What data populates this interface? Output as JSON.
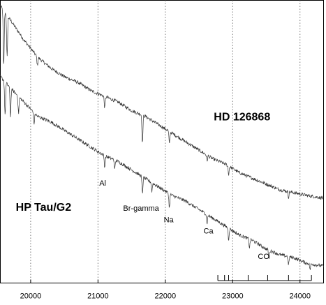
{
  "chart_data": {
    "type": "line",
    "title": "",
    "xlabel": "",
    "ylabel": "",
    "xlim": [
      19550,
      24350
    ],
    "xticks": [
      20000,
      21000,
      22000,
      23000,
      24000
    ],
    "xtick_labels": [
      "20000",
      "21000",
      "22000",
      "23000",
      "24000"
    ],
    "gridlines_x": [
      20000,
      21000,
      22000,
      23000,
      24000
    ],
    "grid": "vertical-dotted",
    "series": [
      {
        "name": "HD 126868",
        "color": "#333333",
        "x": [
          19550,
          19700,
          19900,
          20100,
          20300,
          20500,
          20700,
          20900,
          21100,
          21300,
          21500,
          21700,
          21900,
          22100,
          22300,
          22500,
          22700,
          22900,
          23100,
          23300,
          23500,
          23700,
          23900,
          24100,
          24350
        ],
        "y": [
          0.98,
          0.93,
          0.86,
          0.8,
          0.76,
          0.73,
          0.71,
          0.68,
          0.66,
          0.64,
          0.61,
          0.59,
          0.56,
          0.53,
          0.5,
          0.47,
          0.44,
          0.42,
          0.39,
          0.37,
          0.35,
          0.33,
          0.32,
          0.31,
          0.3
        ],
        "lines": [
          {
            "x": 19600,
            "depth": 0.2
          },
          {
            "x": 19650,
            "depth": 0.15
          },
          {
            "x": 20100,
            "depth": 0.03
          },
          {
            "x": 21100,
            "depth": 0.04
          },
          {
            "x": 21660,
            "depth": 0.1
          },
          {
            "x": 22060,
            "depth": 0.04
          },
          {
            "x": 22620,
            "depth": 0.02
          },
          {
            "x": 22940,
            "depth": 0.03
          },
          {
            "x": 23830,
            "depth": 0.02
          }
        ]
      },
      {
        "name": "HP Tau/G2",
        "color": "#333333",
        "x": [
          19550,
          19700,
          19900,
          20100,
          20300,
          20500,
          20700,
          20900,
          21100,
          21300,
          21500,
          21700,
          21900,
          22100,
          22300,
          22500,
          22700,
          22900,
          23100,
          23300,
          23500,
          23700,
          23900,
          24100,
          24350
        ],
        "y": [
          0.73,
          0.69,
          0.64,
          0.59,
          0.57,
          0.54,
          0.51,
          0.48,
          0.45,
          0.43,
          0.4,
          0.37,
          0.34,
          0.31,
          0.29,
          0.26,
          0.23,
          0.2,
          0.17,
          0.15,
          0.12,
          0.1,
          0.09,
          0.07,
          0.06
        ],
        "lines": [
          {
            "x": 19620,
            "depth": 0.12
          },
          {
            "x": 19700,
            "depth": 0.1
          },
          {
            "x": 19820,
            "depth": 0.06
          },
          {
            "x": 20050,
            "depth": 0.04
          },
          {
            "x": 21100,
            "depth": 0.04
          },
          {
            "x": 21250,
            "depth": 0.03
          },
          {
            "x": 21660,
            "depth": 0.06
          },
          {
            "x": 21800,
            "depth": 0.03
          },
          {
            "x": 22060,
            "depth": 0.05
          },
          {
            "x": 22620,
            "depth": 0.03
          },
          {
            "x": 22940,
            "depth": 0.04
          },
          {
            "x": 23250,
            "depth": 0.03
          },
          {
            "x": 23540,
            "depth": 0.03
          },
          {
            "x": 23830,
            "depth": 0.03
          },
          {
            "x": 24150,
            "depth": 0.02
          }
        ]
      }
    ],
    "series_labels": [
      {
        "text": "HD 126868",
        "x": 22720,
        "y": 0.575
      },
      {
        "text": "HP Tau/G2",
        "x": 19780,
        "y": 0.255
      }
    ],
    "annotations": [
      {
        "text": "Al",
        "x": 21070,
        "y": 0.345
      },
      {
        "text": "Br-gamma",
        "x": 21640,
        "y": 0.255
      },
      {
        "text": "Na",
        "x": 22050,
        "y": 0.215
      },
      {
        "text": "Ca",
        "x": 22640,
        "y": 0.175
      },
      {
        "text": "CO",
        "x": 23460,
        "y": 0.085
      }
    ],
    "co_bandheads": [
      22940,
      23230,
      23520,
      23830
    ],
    "co_ticks": [
      22780,
      22880,
      22940,
      23230,
      23520,
      23830,
      24170
    ]
  }
}
